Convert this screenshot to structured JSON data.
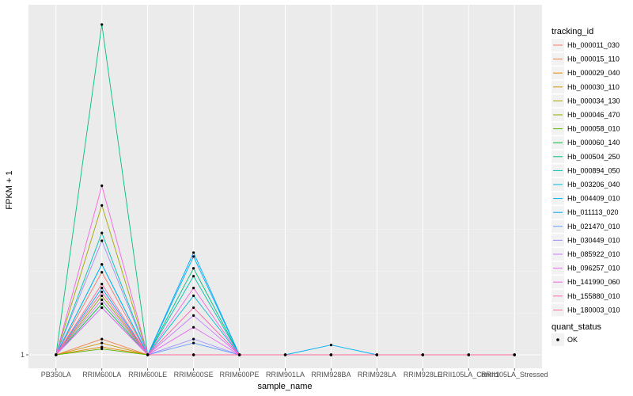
{
  "chart_data": {
    "type": "line",
    "xlabel": "sample_name",
    "ylabel": "FPKM + 1",
    "y_ticks": [
      1
    ],
    "ylim": [
      1,
      86
    ],
    "grid": true,
    "legend_placement": "right",
    "categories": [
      "PB350LA",
      "RRIM600LA",
      "RRIM600LE",
      "RRIM600SE",
      "RRIM600PE",
      "RRIM901LA",
      "RRIM928BA",
      "RRIM928LA",
      "RRIM928LE",
      "RRII105LA_Control",
      "RRII105LA_Stressed"
    ],
    "legend_title": "tracking_id",
    "series": [
      {
        "name": "Hb_000011_030",
        "color": "#F8766D",
        "values": [
          1,
          22,
          1,
          1,
          1,
          1,
          1,
          1,
          1,
          1,
          1
        ]
      },
      {
        "name": "Hb_000015_110",
        "color": "#EF7F49",
        "values": [
          1,
          5,
          1,
          1,
          1,
          1,
          1,
          1,
          1,
          1,
          1
        ]
      },
      {
        "name": "Hb_000029_040",
        "color": "#E38900",
        "values": [
          1,
          3,
          1,
          1,
          1,
          1,
          1,
          1,
          1,
          1,
          1
        ]
      },
      {
        "name": "Hb_000030_110",
        "color": "#D39200",
        "values": [
          1,
          4,
          1,
          1,
          1,
          1,
          1,
          1,
          1,
          1,
          1
        ]
      },
      {
        "name": "Hb_000034_130",
        "color": "#A3A500",
        "values": [
          1,
          39,
          1,
          1,
          1,
          1,
          1,
          1,
          1,
          1,
          1
        ]
      },
      {
        "name": "Hb_000046_470",
        "color": "#8EAB00",
        "values": [
          1,
          16,
          1,
          1,
          1,
          1,
          1,
          1,
          1,
          1,
          1
        ]
      },
      {
        "name": "Hb_000058_010",
        "color": "#5BB300",
        "values": [
          1,
          2.5,
          1,
          1,
          1,
          1,
          1,
          1,
          1,
          1,
          1
        ]
      },
      {
        "name": "Hb_000060_140",
        "color": "#00BA38",
        "values": [
          1,
          14,
          1,
          1,
          1,
          1,
          1,
          1,
          1,
          1,
          1
        ]
      },
      {
        "name": "Hb_000504_250",
        "color": "#00BF7D",
        "values": [
          1,
          85,
          1,
          23,
          1,
          1,
          1,
          1,
          1,
          1,
          1
        ]
      },
      {
        "name": "Hb_000894_050",
        "color": "#00C0AF",
        "values": [
          1,
          32,
          1,
          21,
          1,
          1,
          1,
          1,
          1,
          1,
          1
        ]
      },
      {
        "name": "Hb_003206_040",
        "color": "#00BCD8",
        "values": [
          1,
          24,
          1,
          16,
          1,
          1,
          1,
          1,
          1,
          1,
          1
        ]
      },
      {
        "name": "Hb_004409_010",
        "color": "#00B0F6",
        "values": [
          1,
          24,
          1,
          26,
          1,
          1,
          3.5,
          1,
          1,
          1,
          1
        ]
      },
      {
        "name": "Hb_011113_020",
        "color": "#00A9FF",
        "values": [
          1,
          18,
          1,
          27,
          1,
          1,
          1,
          1,
          1,
          1,
          1
        ]
      },
      {
        "name": "Hb_021470_010",
        "color": "#619CFF",
        "values": [
          1,
          13,
          1,
          4,
          1,
          1,
          1,
          1,
          1,
          1,
          1
        ]
      },
      {
        "name": "Hb_030449_010",
        "color": "#9D8FFF",
        "values": [
          1,
          30,
          1,
          5,
          1,
          1,
          1,
          1,
          1,
          1,
          1
        ]
      },
      {
        "name": "Hb_085922_010",
        "color": "#C77CFF",
        "values": [
          1,
          15,
          1,
          11,
          1,
          1,
          1,
          1,
          1,
          1,
          1
        ]
      },
      {
        "name": "Hb_096257_010",
        "color": "#E76BF3",
        "values": [
          1,
          13,
          1,
          8,
          1,
          1,
          1,
          1,
          1,
          1,
          1
        ]
      },
      {
        "name": "Hb_141990_060",
        "color": "#F564E3",
        "values": [
          1,
          44,
          1,
          18,
          1,
          1,
          1,
          1,
          1,
          1,
          1
        ]
      },
      {
        "name": "Hb_155880_010",
        "color": "#FF64B0",
        "values": [
          1,
          17,
          1,
          13,
          1,
          1,
          1,
          1,
          1,
          1,
          1
        ]
      },
      {
        "name": "Hb_180003_010",
        "color": "#FF6C91",
        "values": [
          1,
          19,
          1,
          1,
          1,
          1,
          1,
          1,
          1,
          1,
          1
        ]
      }
    ],
    "status_legend": {
      "title": "quant_status",
      "items": [
        "OK"
      ]
    }
  }
}
